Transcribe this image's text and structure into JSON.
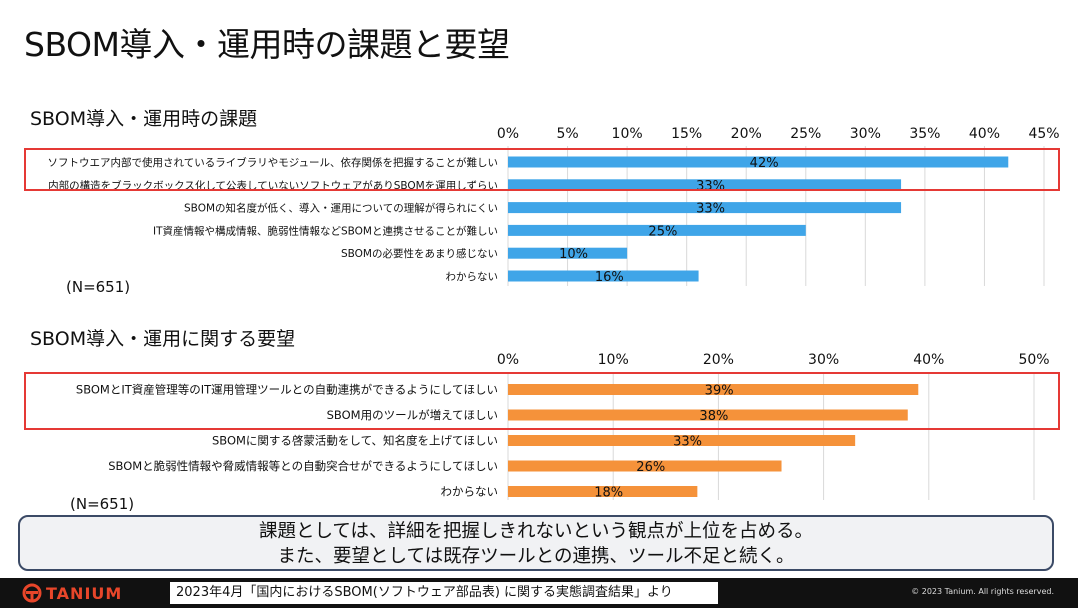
{
  "page": {
    "title": "SBOM導入・運用時の課題と要望",
    "summary_line1": "課題としては、詳細を把握しきれないという観点が上位を占める。",
    "summary_line2": "また、要望としては既存ツールとの連携、ツール不足と続く。",
    "source": "2023年4月「国内におけるSBOM(ソフトウェア部品表) に関する実態調査結果」より",
    "logo_text": "TANIUM",
    "copyright": "© 2023 Tanium. All rights reserved.",
    "n_label_1": "(N=651)",
    "n_label_2": "(N=651)"
  },
  "colors": {
    "bar_blue": "#3fa5e8",
    "bar_orange": "#f5923a",
    "highlight": "#e53935",
    "logo": "#e8462a"
  },
  "chart_data": [
    {
      "type": "bar",
      "orientation": "horizontal",
      "title": "SBOM導入・運用時の課題",
      "categories": [
        "ソフトウエア内部で使用されているライブラリやモジュール、依存関係を把握することが難しい",
        "内部の構造をブラックボックス化して公表していないソフトウェアがありSBOMを運用しずらい",
        "SBOMの知名度が低く、導入・運用についての理解が得られにくい",
        "IT資産情報や構成情報、脆弱性情報などSBOMと連携させることが難しい",
        "SBOMの必要性をあまり感じない",
        "わからない"
      ],
      "values": [
        42,
        33,
        33,
        25,
        10,
        16
      ],
      "value_labels": [
        "42%",
        "33%",
        "33%",
        "25%",
        "10%",
        "16%"
      ],
      "xlim": [
        0,
        45
      ],
      "ticks": [
        "0%",
        "5%",
        "10%",
        "15%",
        "20%",
        "25%",
        "30%",
        "35%",
        "40%",
        "45%"
      ],
      "highlighted_rows": 2,
      "grid": true
    },
    {
      "type": "bar",
      "orientation": "horizontal",
      "title": "SBOM導入・運用に関する要望",
      "categories": [
        "SBOMとIT資産管理等のIT運用管理ツールとの自動連携ができるようにしてほしい",
        "SBOM用のツールが増えてほしい",
        "SBOMに関する啓蒙活動をして、知名度を上げてほしい",
        "SBOMと脆弱性情報や脅威情報等との自動突合せができるようにしてほしい",
        "わからない"
      ],
      "values": [
        39,
        38,
        33,
        26,
        18
      ],
      "value_labels": [
        "39%",
        "38%",
        "33%",
        "26%",
        "18%"
      ],
      "xlim": [
        0,
        50
      ],
      "ticks": [
        "0%",
        "10%",
        "20%",
        "30%",
        "40%",
        "50%"
      ],
      "highlighted_rows": 2,
      "grid": true
    }
  ]
}
